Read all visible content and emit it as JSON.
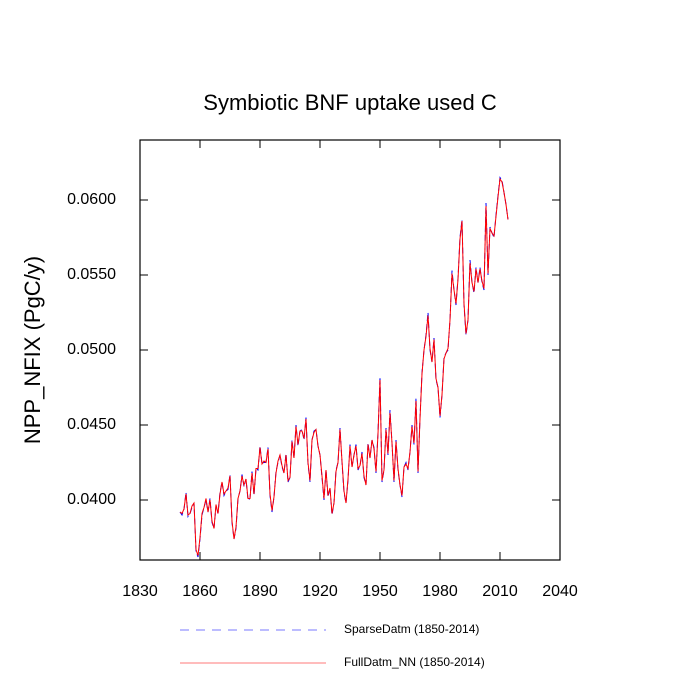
{
  "chart_data": {
    "type": "line",
    "title": "Symbiotic BNF uptake used C",
    "y_label": "NPP_NFIX  (PgC/y)",
    "x": [
      1850,
      1851,
      1852,
      1853,
      1854,
      1855,
      1856,
      1857,
      1858,
      1859,
      1860,
      1861,
      1862,
      1863,
      1864,
      1865,
      1866,
      1867,
      1868,
      1869,
      1870,
      1871,
      1872,
      1873,
      1874,
      1875,
      1876,
      1877,
      1878,
      1879,
      1880,
      1881,
      1882,
      1883,
      1884,
      1885,
      1886,
      1887,
      1888,
      1889,
      1890,
      1891,
      1892,
      1893,
      1894,
      1895,
      1896,
      1897,
      1898,
      1899,
      1900,
      1901,
      1902,
      1903,
      1904,
      1905,
      1906,
      1907,
      1908,
      1909,
      1910,
      1911,
      1912,
      1913,
      1914,
      1915,
      1916,
      1917,
      1918,
      1919,
      1920,
      1921,
      1922,
      1923,
      1924,
      1925,
      1926,
      1927,
      1928,
      1929,
      1930,
      1931,
      1932,
      1933,
      1934,
      1935,
      1936,
      1937,
      1938,
      1939,
      1940,
      1941,
      1942,
      1943,
      1944,
      1945,
      1946,
      1947,
      1948,
      1949,
      1950,
      1951,
      1952,
      1953,
      1954,
      1955,
      1956,
      1957,
      1958,
      1959,
      1960,
      1961,
      1962,
      1963,
      1964,
      1965,
      1966,
      1967,
      1968,
      1969,
      1970,
      1971,
      1972,
      1973,
      1974,
      1975,
      1976,
      1977,
      1978,
      1979,
      1980,
      1981,
      1982,
      1983,
      1984,
      1985,
      1986,
      1987,
      1988,
      1989,
      1990,
      1991,
      1992,
      1993,
      1994,
      1995,
      1996,
      1997,
      1998,
      1999,
      2000,
      2001,
      2002,
      2003,
      2004,
      2005,
      2006,
      2007,
      2008,
      2009,
      2010,
      2011,
      2012,
      2013,
      2014
    ],
    "series": [
      {
        "name": "SparseDatm (1850-2014)",
        "color": "#0000ff",
        "dashed": true,
        "values": [
          0.0392,
          0.039,
          0.0394,
          0.0405,
          0.0389,
          0.0391,
          0.0395,
          0.0398,
          0.0366,
          0.0362,
          0.0374,
          0.039,
          0.0395,
          0.04,
          0.0392,
          0.0401,
          0.0385,
          0.0381,
          0.0396,
          0.0391,
          0.0405,
          0.0412,
          0.0403,
          0.0406,
          0.0407,
          0.0417,
          0.0385,
          0.0374,
          0.0381,
          0.0401,
          0.0406,
          0.0417,
          0.0409,
          0.0414,
          0.04,
          0.0401,
          0.0419,
          0.0403,
          0.0421,
          0.042,
          0.0436,
          0.0424,
          0.0425,
          0.0425,
          0.0435,
          0.0403,
          0.0392,
          0.0402,
          0.0419,
          0.0425,
          0.043,
          0.0422,
          0.0418,
          0.0431,
          0.0412,
          0.0415,
          0.044,
          0.0428,
          0.045,
          0.0436,
          0.0446,
          0.0447,
          0.044,
          0.0455,
          0.0424,
          0.0412,
          0.044,
          0.0446,
          0.0447,
          0.0436,
          0.043,
          0.0415,
          0.04,
          0.042,
          0.0402,
          0.0408,
          0.039,
          0.0398,
          0.042,
          0.0425,
          0.0448,
          0.0425,
          0.0405,
          0.0398,
          0.0413,
          0.0437,
          0.0422,
          0.043,
          0.0437,
          0.042,
          0.0423,
          0.0432,
          0.0415,
          0.041,
          0.0438,
          0.0428,
          0.044,
          0.0435,
          0.0418,
          0.0445,
          0.0482,
          0.0412,
          0.042,
          0.0448,
          0.043,
          0.046,
          0.0438,
          0.0412,
          0.044,
          0.042,
          0.041,
          0.0402,
          0.0422,
          0.0425,
          0.042,
          0.0432,
          0.045,
          0.0437,
          0.0468,
          0.0418,
          0.0455,
          0.0485,
          0.05,
          0.051,
          0.0525,
          0.05,
          0.0492,
          0.0508,
          0.048,
          0.0475,
          0.0455,
          0.047,
          0.0495,
          0.0498,
          0.05,
          0.052,
          0.0553,
          0.054,
          0.053,
          0.0548,
          0.0575,
          0.0587,
          0.053,
          0.051,
          0.052,
          0.056,
          0.0545,
          0.0538,
          0.0555,
          0.0545,
          0.0555,
          0.0545,
          0.054,
          0.0598,
          0.055,
          0.0582,
          0.0578,
          0.0575,
          0.059,
          0.0603,
          0.0615,
          0.0613,
          0.0605,
          0.0597,
          0.0587
        ]
      },
      {
        "name": "FullDatm_NN (1850-2014)",
        "color": "#ff0000",
        "dashed": false,
        "values": [
          0.0392,
          0.0391,
          0.0394,
          0.0404,
          0.039,
          0.0391,
          0.0396,
          0.0398,
          0.0367,
          0.0363,
          0.0375,
          0.0391,
          0.0395,
          0.0401,
          0.0392,
          0.04,
          0.0386,
          0.0381,
          0.0397,
          0.0391,
          0.0404,
          0.0412,
          0.0404,
          0.0406,
          0.0408,
          0.0416,
          0.0386,
          0.0374,
          0.0382,
          0.0401,
          0.0406,
          0.0416,
          0.041,
          0.0414,
          0.0401,
          0.0401,
          0.0418,
          0.0404,
          0.0421,
          0.0421,
          0.0435,
          0.0424,
          0.0426,
          0.0425,
          0.0434,
          0.0404,
          0.0393,
          0.0402,
          0.0418,
          0.0426,
          0.043,
          0.0423,
          0.0418,
          0.043,
          0.0413,
          0.0415,
          0.0439,
          0.0428,
          0.0449,
          0.0437,
          0.0446,
          0.0446,
          0.0441,
          0.0454,
          0.0425,
          0.0413,
          0.044,
          0.0445,
          0.0447,
          0.0436,
          0.043,
          0.0416,
          0.0401,
          0.042,
          0.0403,
          0.0408,
          0.0391,
          0.0398,
          0.0419,
          0.0425,
          0.0447,
          0.0426,
          0.0406,
          0.0398,
          0.0414,
          0.0436,
          0.0422,
          0.043,
          0.0436,
          0.0421,
          0.0423,
          0.0431,
          0.0416,
          0.041,
          0.0437,
          0.0428,
          0.044,
          0.0434,
          0.0419,
          0.0444,
          0.048,
          0.0413,
          0.042,
          0.0447,
          0.0431,
          0.0458,
          0.0438,
          0.0413,
          0.0439,
          0.0421,
          0.041,
          0.0403,
          0.0422,
          0.0424,
          0.0421,
          0.0432,
          0.0449,
          0.0438,
          0.0466,
          0.0419,
          0.0454,
          0.0484,
          0.05,
          0.0509,
          0.0523,
          0.0501,
          0.0492,
          0.0507,
          0.0481,
          0.0475,
          0.0456,
          0.047,
          0.0494,
          0.0498,
          0.0501,
          0.052,
          0.0551,
          0.054,
          0.0531,
          0.0547,
          0.0574,
          0.0586,
          0.0531,
          0.0511,
          0.052,
          0.0558,
          0.0545,
          0.0539,
          0.0554,
          0.0545,
          0.0554,
          0.0546,
          0.0541,
          0.0596,
          0.0551,
          0.0581,
          0.0578,
          0.0576,
          0.0589,
          0.0602,
          0.0614,
          0.0612,
          0.0605,
          0.0597,
          0.0587
        ]
      }
    ],
    "xlim": [
      1830,
      2040
    ],
    "xticks": [
      1830,
      1860,
      1890,
      1920,
      1950,
      1980,
      2010,
      2040
    ],
    "ylim": [
      0.036,
      0.064
    ],
    "yticks": [
      {
        "value": 0.04,
        "label": "0.0400"
      },
      {
        "value": 0.045,
        "label": "0.0450"
      },
      {
        "value": 0.05,
        "label": "0.0500"
      },
      {
        "value": 0.055,
        "label": "0.0550"
      },
      {
        "value": 0.06,
        "label": "0.0600"
      }
    ],
    "grid": false,
    "legend": "bottom"
  }
}
